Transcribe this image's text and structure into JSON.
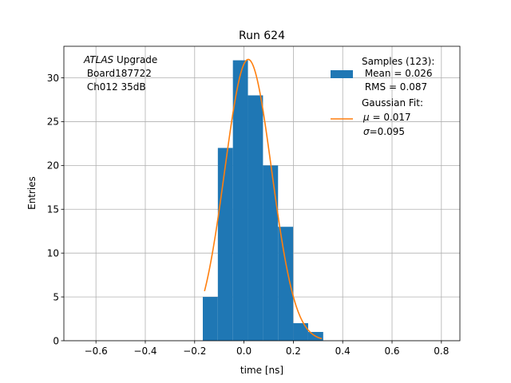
{
  "chart_data": {
    "type": "histogram",
    "title": "Run 624",
    "xlabel": "time [ns]",
    "ylabel": "Entries",
    "xlim": [
      -0.73,
      0.875
    ],
    "ylim": [
      0,
      33.6
    ],
    "grid": true,
    "xticks": [
      -0.6,
      -0.4,
      -0.2,
      0.0,
      0.2,
      0.4,
      0.6,
      0.8
    ],
    "xtick_labels": [
      "−0.6",
      "−0.4",
      "−0.2",
      "0.0",
      "0.2",
      "0.4",
      "0.6",
      "0.8"
    ],
    "yticks": [
      0,
      5,
      10,
      15,
      20,
      25,
      30
    ],
    "ytick_labels": [
      "0",
      "5",
      "10",
      "15",
      "20",
      "25",
      "30"
    ],
    "annotation": {
      "italic": "ATLAS",
      "line1_rest": " Upgrade",
      "line2": " Board187722",
      "line3": " Ch012 35dB"
    },
    "histogram": {
      "name": "Samples (123):",
      "color": "#1f77b4",
      "bin_edges": [
        -0.167,
        -0.106,
        -0.045,
        0.016,
        0.077,
        0.138,
        0.199,
        0.26,
        0.321
      ],
      "counts": [
        5,
        22,
        32,
        28,
        20,
        13,
        2,
        1
      ]
    },
    "fit": {
      "name": "Gaussian Fit:",
      "color": "#ff7f0e",
      "amplitude": 32.1,
      "mu": 0.017,
      "sigma": 0.095,
      "x_range": [
        -0.16,
        0.315
      ]
    },
    "legend": {
      "placement": "top-right",
      "hist_lines": [
        "Samples (123):",
        " Mean = 0.026",
        " RMS = 0.087"
      ],
      "fit_line1": "Gaussian Fit:",
      "fit_mu_symbol": "μ",
      "fit_mu_rest": " = 0.017",
      "fit_sigma_symbol": "σ",
      "fit_sigma_rest": "=0.095"
    }
  }
}
